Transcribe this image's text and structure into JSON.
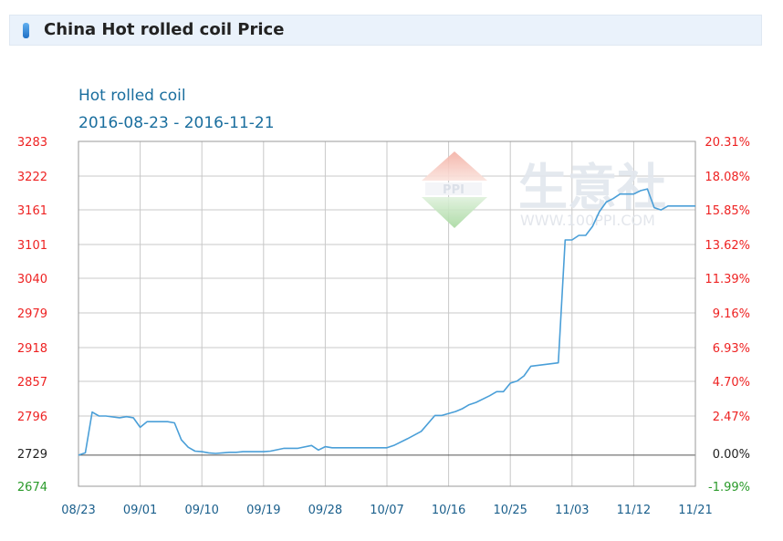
{
  "header": {
    "title": "China Hot rolled coil Price"
  },
  "colors": {
    "line": "#4a9fd8",
    "grid": "#c8c8c8",
    "left_ticks": "#ee2222",
    "baseline_tick": "#222222",
    "negative_ticks": "#2a9a2a",
    "x_ticks": "#1a5f8c",
    "title": "#1a6e9e"
  },
  "watermark": {
    "brand": "生意社",
    "site": "WWW.100PPI.COM",
    "logo": "PPI"
  },
  "chart_data": {
    "type": "line",
    "title": "Hot rolled coil",
    "subtitle": "2016-08-23 - 2016-11-21",
    "x_ticks": [
      "08/23",
      "09/01",
      "09/10",
      "09/19",
      "09/28",
      "10/07",
      "10/16",
      "10/25",
      "11/03",
      "11/12",
      "11/21"
    ],
    "xlim": [
      "2016-08-23",
      "2016-11-21"
    ],
    "ylim": [
      2674,
      3283
    ],
    "y_ticks_left": [
      "3283",
      "3222",
      "3161",
      "3101",
      "3040",
      "2979",
      "2918",
      "2857",
      "2796",
      "2729",
      "2674"
    ],
    "y_ticks_right": [
      "20.31%",
      "18.08%",
      "15.85%",
      "13.62%",
      "11.39%",
      "9.16%",
      "6.93%",
      "4.70%",
      "2.47%",
      "0.00%",
      "-1.99%"
    ],
    "baseline": 2729,
    "grid": true,
    "series": [
      {
        "x": [
          "2016-08-23",
          "2016-08-24",
          "2016-08-25",
          "2016-08-26",
          "2016-08-27",
          "2016-08-29",
          "2016-08-30",
          "2016-08-31",
          "2016-09-01",
          "2016-09-02",
          "2016-09-03",
          "2016-09-05",
          "2016-09-06",
          "2016-09-07",
          "2016-09-08",
          "2016-09-09",
          "2016-09-10",
          "2016-09-11",
          "2016-09-12",
          "2016-09-13",
          "2016-09-14",
          "2016-09-15",
          "2016-09-16",
          "2016-09-19",
          "2016-09-20",
          "2016-09-22",
          "2016-09-24",
          "2016-09-26",
          "2016-09-27",
          "2016-09-28",
          "2016-09-29",
          "2016-10-01",
          "2016-10-07",
          "2016-10-08",
          "2016-10-10",
          "2016-10-12",
          "2016-10-14",
          "2016-10-15",
          "2016-10-17",
          "2016-10-18",
          "2016-10-19",
          "2016-10-20",
          "2016-10-22",
          "2016-10-23",
          "2016-10-24",
          "2016-10-25",
          "2016-10-26",
          "2016-10-27",
          "2016-10-28",
          "2016-10-30",
          "2016-11-01",
          "2016-11-02",
          "2016-11-03",
          "2016-11-04",
          "2016-11-05",
          "2016-11-06",
          "2016-11-07",
          "2016-11-08",
          "2016-11-09",
          "2016-11-10",
          "2016-11-11",
          "2016-11-12",
          "2016-11-13",
          "2016-11-14",
          "2016-11-15",
          "2016-11-16",
          "2016-11-17",
          "2016-11-18",
          "2016-11-19",
          "2016-11-21"
        ],
        "values": [
          2729,
          2733,
          2805,
          2798,
          2798,
          2795,
          2797,
          2795,
          2778,
          2788,
          2788,
          2788,
          2786,
          2756,
          2743,
          2736,
          2735,
          2733,
          2732,
          2733,
          2734,
          2734,
          2735,
          2735,
          2736,
          2741,
          2741,
          2746,
          2738,
          2744,
          2742,
          2742,
          2742,
          2746,
          2758,
          2771,
          2799,
          2799,
          2806,
          2811,
          2818,
          2822,
          2834,
          2841,
          2841,
          2856,
          2860,
          2869,
          2886,
          2889,
          2892,
          3109,
          3109,
          3117,
          3117,
          3133,
          3159,
          3176,
          3182,
          3190,
          3190,
          3190,
          3196,
          3199,
          3166,
          3162,
          3169,
          3169,
          3169,
          3169
        ]
      }
    ]
  }
}
